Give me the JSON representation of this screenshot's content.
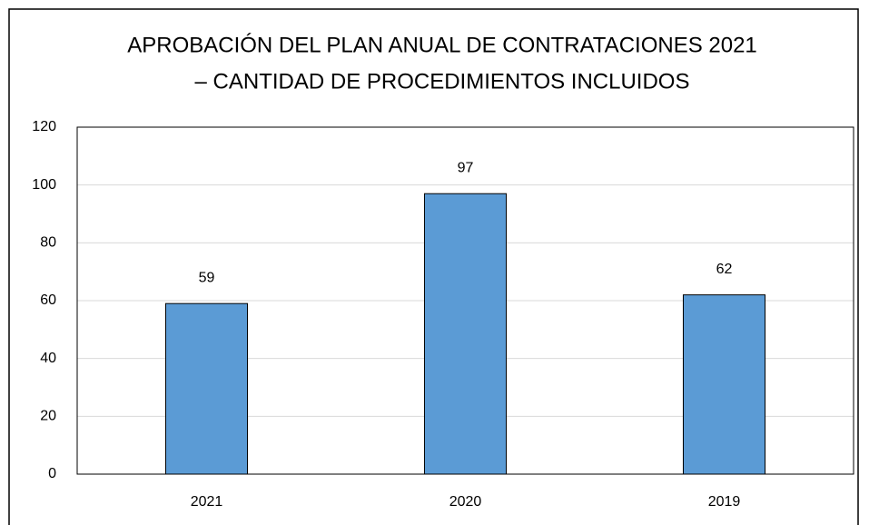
{
  "chart_data": {
    "type": "bar",
    "title": [
      "APROBACIÓN DEL PLAN ANUAL DE CONTRATACIONES 2021",
      "– CANTIDAD DE PROCEDIMIENTOS INCLUIDOS"
    ],
    "categories": [
      "2021",
      "2020",
      "2019"
    ],
    "values": [
      59,
      97,
      62
    ],
    "color": "#5b9bd5",
    "ylim": [
      0,
      120
    ],
    "yticks": [
      0,
      20,
      40,
      60,
      80,
      100,
      120
    ],
    "grid": true,
    "data_labels": true
  }
}
